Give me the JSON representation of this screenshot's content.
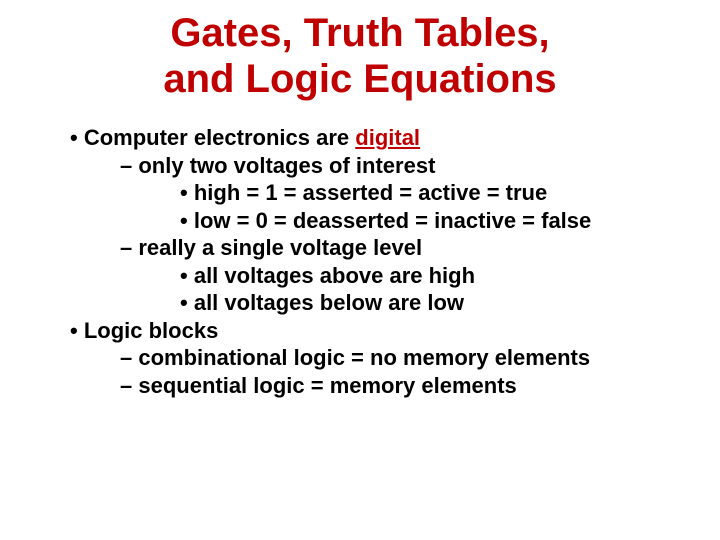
{
  "title": {
    "line1": "Gates, Truth Tables,",
    "line2": "and Logic Equations",
    "color": "#c00000",
    "fontsize": 40
  },
  "body": {
    "fontsize": 22,
    "color": "#000000",
    "highlight_color": "#c00000"
  },
  "bullets": {
    "b1_pre": "Computer electronics are ",
    "b1_hl": "digital",
    "b1_1": "only two voltages of interest",
    "b1_1_1": "high = 1 = asserted = active = true",
    "b1_1_2": "low = 0 = deasserted = inactive = false",
    "b1_2": "really a single voltage level",
    "b1_2_1": "all voltages above are high",
    "b1_2_2": "all voltages below are low",
    "b2": "Logic blocks",
    "b2_1": "combinational logic = no memory elements",
    "b2_2": "sequential logic = memory elements"
  }
}
